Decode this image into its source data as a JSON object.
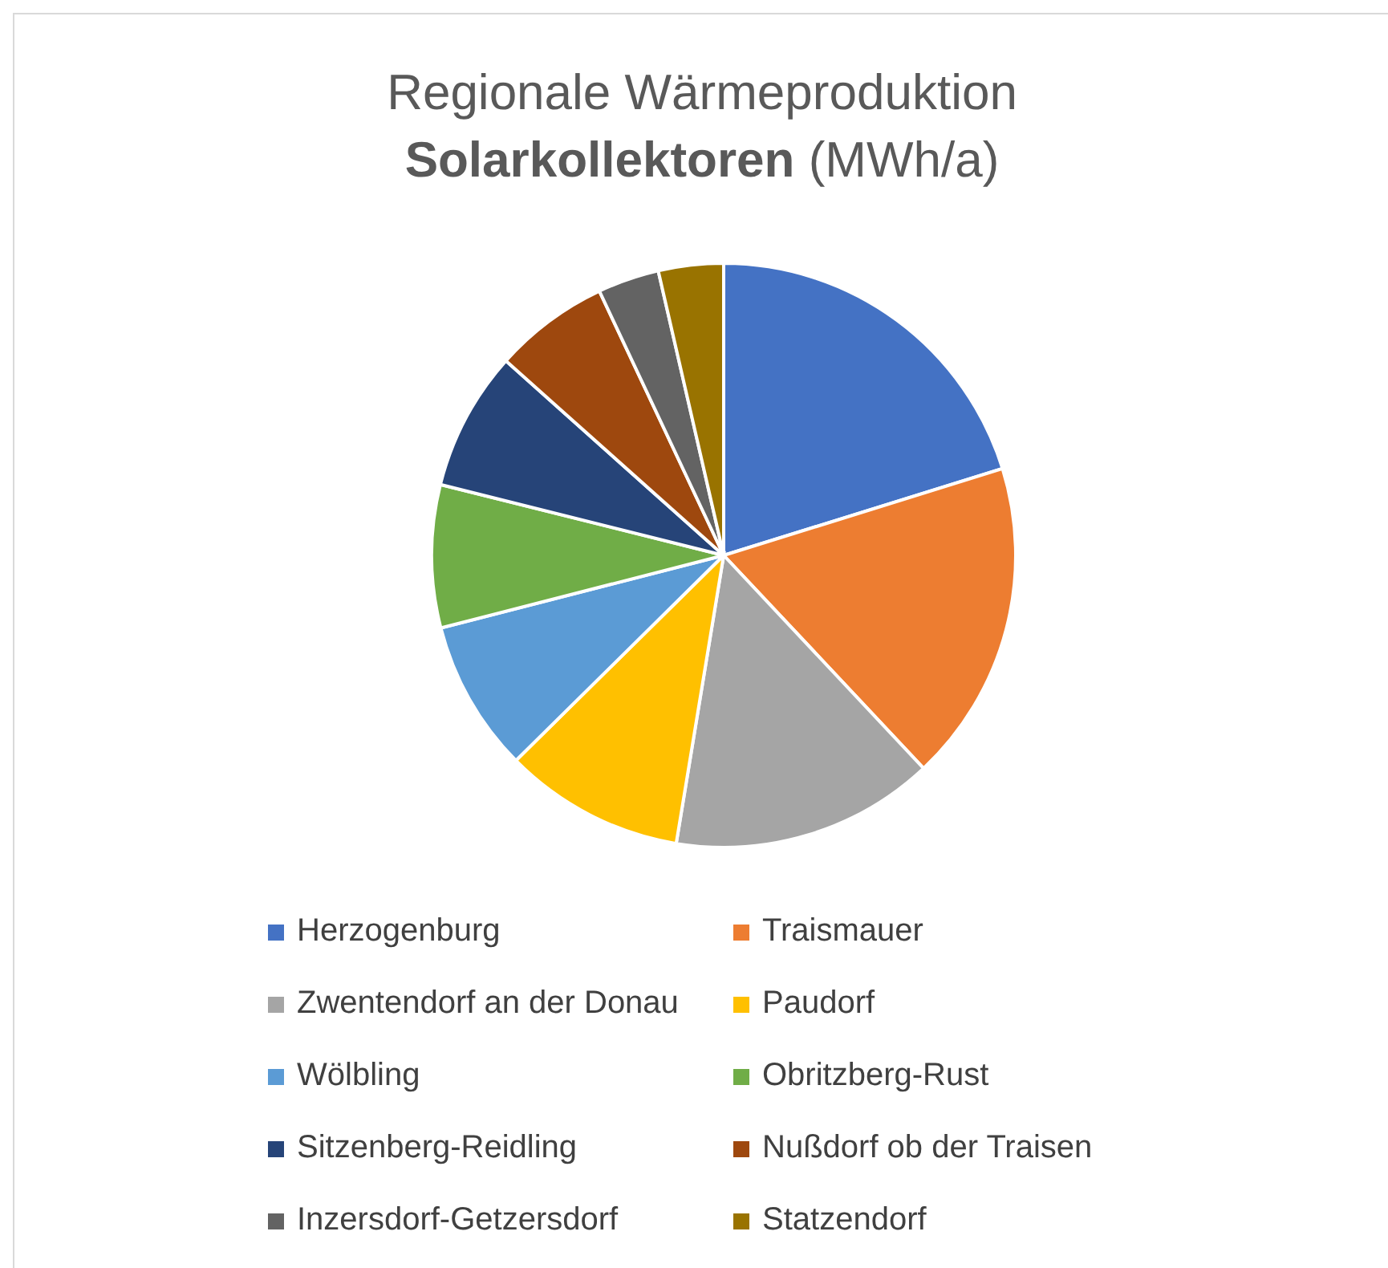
{
  "chart_data": {
    "type": "pie",
    "title": "Regionale Wärmeproduktion",
    "subtitle": "Solarkollektoren (MWh/a)",
    "categories": [
      "Herzogenburg",
      "Traismauer",
      "Zwentendorf an der Donau",
      "Paudorf",
      "Wölbling",
      "Obritzberg-Rust",
      "Sitzenberg-Reidling",
      "Nußdorf ob der Traisen",
      "Inzersdorf-Getzersdorf",
      "Statzendorf"
    ],
    "values": [
      20.2,
      17.8,
      14.6,
      10.0,
      8.4,
      7.9,
      7.7,
      6.4,
      3.4,
      3.6
    ],
    "colors": [
      "#4472c4",
      "#ed7d31",
      "#a5a5a5",
      "#ffc000",
      "#5b9bd5",
      "#70ad47",
      "#264478",
      "#9e480e",
      "#636363",
      "#997300"
    ],
    "legend": "bottom"
  }
}
